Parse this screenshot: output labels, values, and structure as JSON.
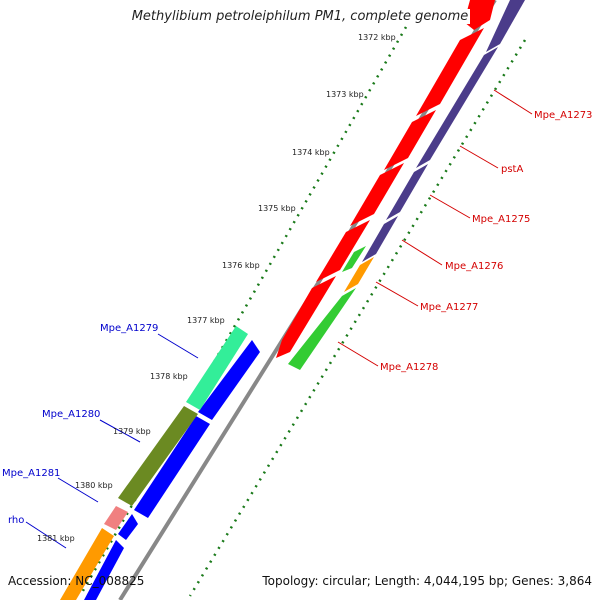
{
  "title": "Methylibium petroleiphilum PM1, complete genome",
  "footer": {
    "accession": "Accession: NC_008825",
    "summary": "Topology: circular; Length: 4,044,195 bp; Genes: 3,864"
  },
  "colors": {
    "forward_label": "#d40000",
    "reverse_label": "#0000cc",
    "backbone": "#888888",
    "tick_dots": "#1a7a1a"
  },
  "ticks": [
    "1372 kbp",
    "1373 kbp",
    "1374 kbp",
    "1375 kbp",
    "1376 kbp",
    "1377 kbp",
    "1378 kbp",
    "1379 kbp",
    "1380 kbp",
    "1381 kbp"
  ],
  "forward_genes": [
    "Mpe_A1273",
    "pstA",
    "Mpe_A1275",
    "Mpe_A1276",
    "Mpe_A1277",
    "Mpe_A1278"
  ],
  "reverse_genes": [
    "Mpe_A1279",
    "Mpe_A1280",
    "Mpe_A1281",
    "rho"
  ]
}
